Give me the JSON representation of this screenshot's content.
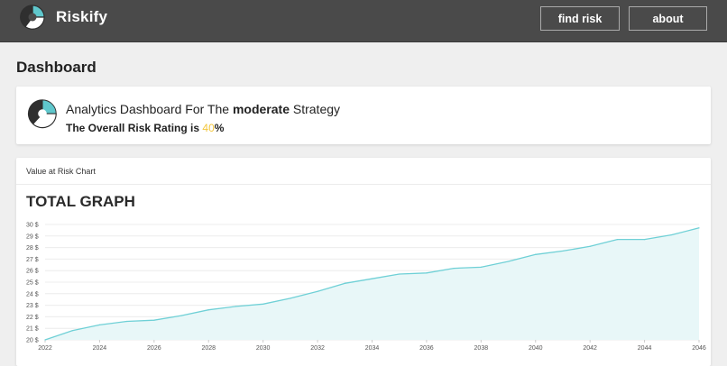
{
  "app": {
    "name": "Riskify"
  },
  "nav": {
    "find_risk": "find risk",
    "about": "about"
  },
  "page": {
    "title": "Dashboard"
  },
  "summary": {
    "prefix": "Analytics Dashboard For The",
    "strategy": "moderate",
    "suffix": "Strategy",
    "risk_prefix": "The Overall Risk Rating is",
    "risk_value": "40",
    "risk_suffix": "%"
  },
  "chart_card": {
    "header": "Value at Risk Chart"
  },
  "chart_data": {
    "type": "area",
    "title": "TOTAL GRAPH",
    "xlabel": "",
    "ylabel": "",
    "x": [
      2022,
      2023,
      2024,
      2025,
      2026,
      2027,
      2028,
      2029,
      2030,
      2031,
      2032,
      2033,
      2034,
      2035,
      2036,
      2037,
      2038,
      2039,
      2040,
      2041,
      2042,
      2043,
      2044,
      2045,
      2046
    ],
    "values": [
      20.0,
      20.8,
      21.3,
      21.6,
      21.7,
      22.1,
      22.6,
      22.9,
      23.1,
      23.6,
      24.2,
      24.9,
      25.3,
      25.7,
      25.8,
      26.2,
      26.3,
      26.8,
      27.4,
      27.7,
      28.1,
      28.7,
      28.7,
      29.1,
      29.7
    ],
    "x_ticks": [
      "2022",
      "2024",
      "2026",
      "2028",
      "2030",
      "2032",
      "2034",
      "2036",
      "2038",
      "2040",
      "2042",
      "2044",
      "2046"
    ],
    "y_ticks": [
      "20 $",
      "21 $",
      "22 $",
      "23 $",
      "24 $",
      "25 $",
      "26 $",
      "27 $",
      "28 $",
      "29 $",
      "30 $"
    ],
    "ylim": [
      20,
      30
    ],
    "xlim": [
      2022,
      2046
    ],
    "grid": true,
    "line_color": "#6fd0d6",
    "fill_color": "#e8f7f8"
  },
  "colors": {
    "navbar": "#4a4a4a",
    "accent_teal": "#5fc7cc",
    "risk_value": "#f3c63a"
  }
}
